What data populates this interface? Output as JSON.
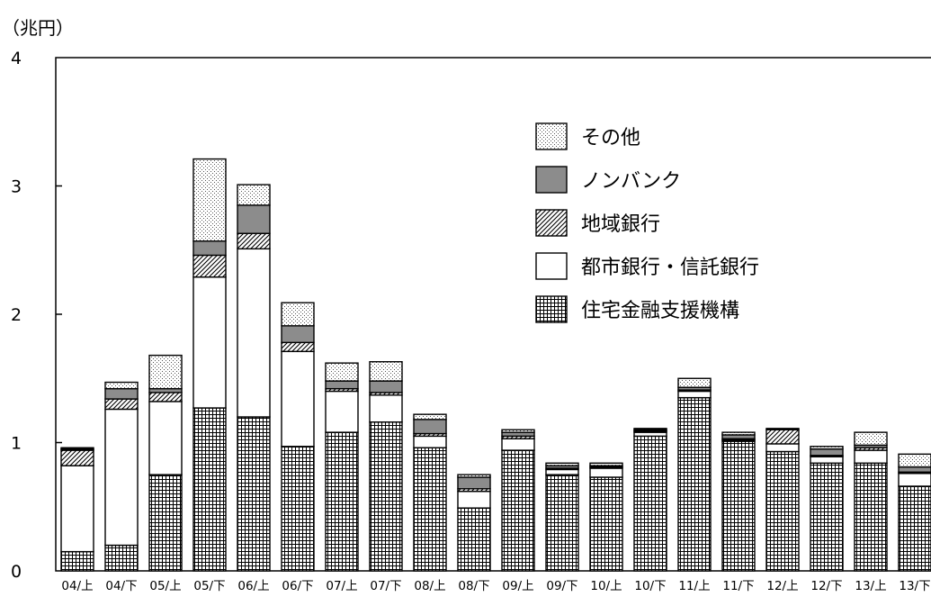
{
  "chart_data": {
    "type": "bar",
    "stacked": true,
    "unit_label": "（兆円）",
    "ylim": [
      0,
      4
    ],
    "yticks": [
      "0",
      "1",
      "2",
      "3",
      "4"
    ],
    "categories": [
      "04/上",
      "04/下",
      "05/上",
      "05/下",
      "06/上",
      "06/下",
      "07/上",
      "07/下",
      "08/上",
      "08/下",
      "09/上",
      "09/下",
      "10/上",
      "10/下",
      "11/上",
      "11/下",
      "12/上",
      "12/下",
      "13/上",
      "13/下"
    ],
    "legend_position": "top-right",
    "series": [
      {
        "name": "住宅金融支援機構",
        "pattern": "grid",
        "values": [
          0.15,
          0.2,
          0.75,
          1.27,
          1.2,
          0.97,
          1.08,
          1.16,
          0.96,
          0.49,
          0.94,
          0.75,
          0.73,
          1.05,
          1.35,
          1.01,
          0.93,
          0.84,
          0.84,
          0.66
        ]
      },
      {
        "name": "都市銀行・信託銀行",
        "pattern": "white",
        "values": [
          0.67,
          1.06,
          0.57,
          1.02,
          1.31,
          0.74,
          0.32,
          0.21,
          0.09,
          0.13,
          0.09,
          0.04,
          0.07,
          0.03,
          0.05,
          0.01,
          0.06,
          0.05,
          0.1,
          0.1
        ]
      },
      {
        "name": "地域銀行",
        "pattern": "diagonal",
        "values": [
          0.12,
          0.08,
          0.07,
          0.17,
          0.12,
          0.07,
          0.02,
          0.02,
          0.02,
          0.02,
          0.02,
          0.01,
          0.01,
          0.01,
          0.01,
          0.01,
          0.11,
          0.01,
          0.02,
          0.01
        ]
      },
      {
        "name": "ノンバンク",
        "pattern": "gray",
        "values": [
          0.01,
          0.08,
          0.03,
          0.11,
          0.22,
          0.13,
          0.06,
          0.09,
          0.11,
          0.09,
          0.03,
          0.02,
          0.01,
          0.01,
          0.02,
          0.03,
          0.01,
          0.05,
          0.02,
          0.04
        ]
      },
      {
        "name": "その他",
        "pattern": "dots",
        "values": [
          0.01,
          0.05,
          0.26,
          0.64,
          0.16,
          0.18,
          0.14,
          0.15,
          0.04,
          0.02,
          0.02,
          0.02,
          0.02,
          0.01,
          0.07,
          0.02,
          0.0,
          0.02,
          0.1,
          0.1
        ]
      }
    ]
  }
}
